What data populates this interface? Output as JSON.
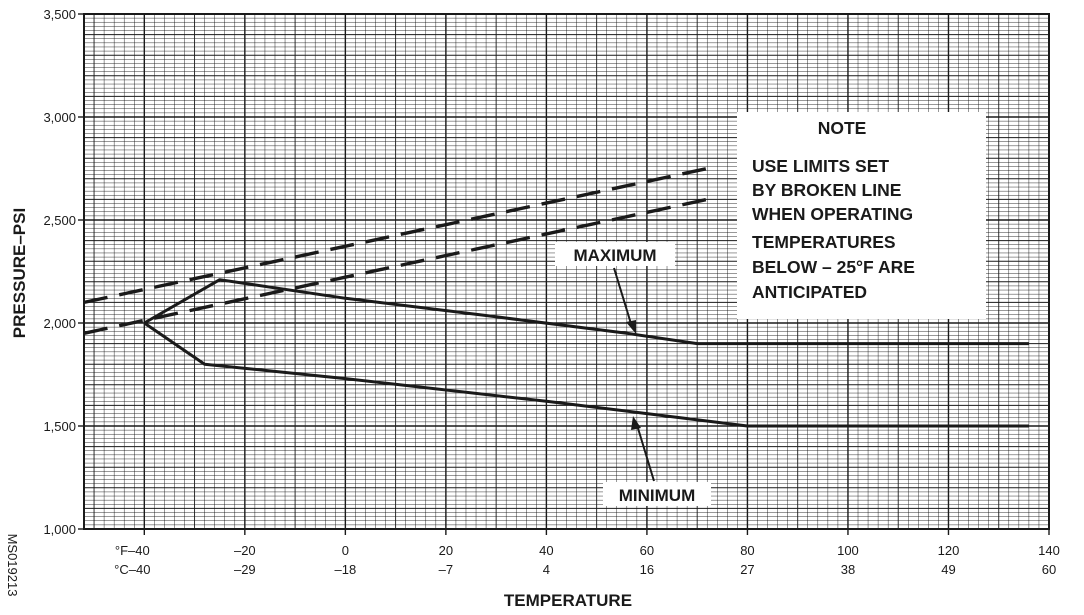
{
  "chart_data": {
    "type": "line",
    "title": "",
    "xlabel": "TEMPERATURE",
    "ylabel": "PRESSURE–PSI",
    "xlim": [
      -52,
      140
    ],
    "ylim": [
      1000,
      3500
    ],
    "grid": true,
    "x_ticks_f": [
      "°F–40",
      "–20",
      "0",
      "20",
      "40",
      "60",
      "80",
      "100",
      "120",
      "140"
    ],
    "x_ticks_c": [
      "°C–40",
      "–29",
      "–18",
      "–7",
      "4",
      "16",
      "27",
      "38",
      "49",
      "60"
    ],
    "x_tick_values": [
      -40,
      -20,
      0,
      20,
      40,
      60,
      80,
      100,
      120,
      140
    ],
    "y_ticks": [
      {
        "value": 1000,
        "label": "1,000"
      },
      {
        "value": 1500,
        "label": "1,500"
      },
      {
        "value": 2000,
        "label": "2,000"
      },
      {
        "value": 2500,
        "label": "2,500"
      },
      {
        "value": 3000,
        "label": "3,000"
      },
      {
        "value": 3500,
        "label": "3,500"
      }
    ],
    "series": [
      {
        "name": "MAXIMUM",
        "style": "solid",
        "x": [
          -40,
          -25,
          0,
          30,
          56,
          70,
          136
        ],
        "y": [
          2000,
          2210,
          2120,
          2030,
          1950,
          1900,
          1900
        ]
      },
      {
        "name": "MINIMUM",
        "style": "solid",
        "x": [
          -40,
          -28,
          0,
          40,
          60,
          80,
          136
        ],
        "y": [
          2000,
          1800,
          1730,
          1620,
          1560,
          1500,
          1500
        ]
      },
      {
        "style": "dashed",
        "x": [
          -52,
          72
        ],
        "y": [
          2100,
          2750
        ]
      },
      {
        "style": "dashed",
        "x": [
          -52,
          72
        ],
        "y": [
          1950,
          2600
        ]
      }
    ],
    "annotations": {
      "maximum_label": "MAXIMUM",
      "minimum_label": "MINIMUM",
      "note_title": "NOTE",
      "note_lines": [
        "USE LIMITS SET",
        "BY BROKEN LINE",
        "WHEN OPERATING",
        "TEMPERATURES",
        "BELOW – 25°F ARE",
        "ANTICIPATED"
      ],
      "figure_id": "MS019213"
    },
    "colors": {
      "ink": "#1a1a1a",
      "background": "#ffffff"
    }
  }
}
